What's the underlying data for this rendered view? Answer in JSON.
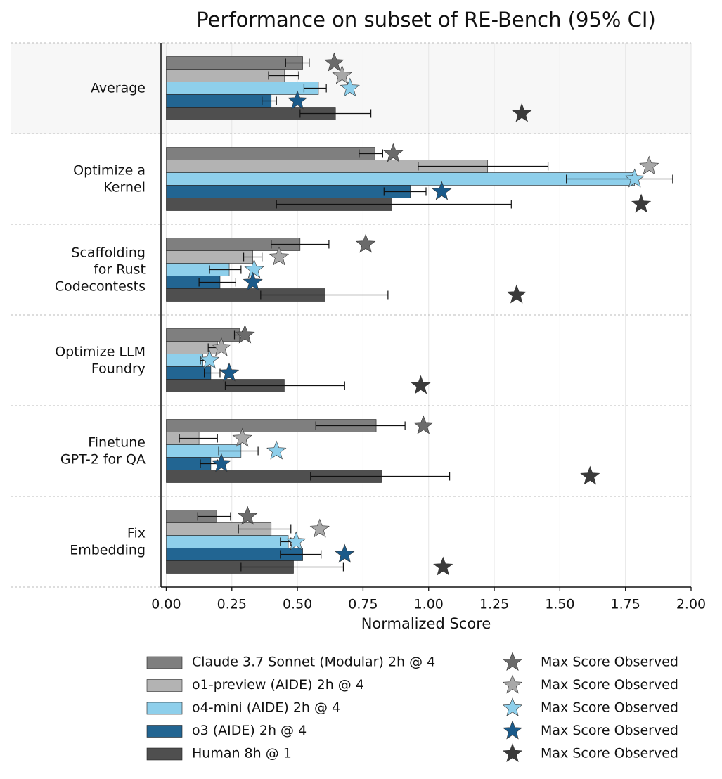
{
  "chart_data": {
    "type": "bar",
    "orientation": "horizontal",
    "title": "Performance on subset of RE-Bench (95% CI)",
    "xlabel": "Normalized Score",
    "categories": [
      "Average",
      "Optimize a\nKernel",
      "Scaffolding\nfor Rust\nCodecontests",
      "Optimize LLM\nFoundry",
      "Finetune\nGPT-2 for QA",
      "Fix\nEmbedding"
    ],
    "xlim": [
      -0.02,
      2.0
    ],
    "xticks": [
      {
        "value": 0,
        "label": "0.00"
      },
      0.25,
      {
        "value": 0.5,
        "label": "0.50"
      },
      0.75,
      {
        "value": 1,
        "label": "1.00"
      },
      1.25,
      {
        "value": 1.5,
        "label": "1.50"
      },
      1.75,
      {
        "value": 2,
        "label": "2.00"
      }
    ],
    "grid": true,
    "series": [
      {
        "name": "Claude 3.7 Sonnet (Modular) 2h @ 4",
        "color": "#7f7f7f",
        "star_color": "#6b6b6b",
        "max_label": "Max Score Observed",
        "values": [
          0.52,
          0.795,
          0.51,
          0.28,
          0.8,
          0.19
        ],
        "ci_low": [
          0.455,
          0.735,
          0.4,
          0.26,
          0.57,
          0.12
        ],
        "ci_high": [
          0.545,
          0.825,
          0.62,
          0.29,
          0.91,
          0.245
        ],
        "max_scores": [
          0.64,
          0.865,
          0.76,
          0.3,
          0.98,
          0.31
        ]
      },
      {
        "name": "o1-preview (AIDE) 2h @ 4",
        "color": "#b3b3b3",
        "star_color": "#a8a8a8",
        "max_label": "Max Score Observed",
        "values": [
          0.45,
          1.225,
          0.33,
          0.195,
          0.125,
          0.4
        ],
        "ci_low": [
          0.39,
          0.96,
          0.295,
          0.16,
          0.05,
          0.275
        ],
        "ci_high": [
          0.505,
          1.455,
          0.365,
          0.215,
          0.195,
          0.475
        ],
        "max_scores": [
          0.67,
          1.84,
          0.43,
          0.21,
          0.29,
          0.585
        ]
      },
      {
        "name": "o4-mini (AIDE) 2h @ 4",
        "color": "#8ecfeb",
        "star_color": "#8ecfeb",
        "max_label": "Max Score Observed",
        "values": [
          0.58,
          1.785,
          0.24,
          0.14,
          0.285,
          0.465
        ],
        "ci_low": [
          0.525,
          1.525,
          0.165,
          0.13,
          0.2,
          0.435
        ],
        "ci_high": [
          0.61,
          1.93,
          0.285,
          0.16,
          0.35,
          0.475
        ],
        "max_scores": [
          0.7,
          1.785,
          0.335,
          0.165,
          0.42,
          0.495
        ]
      },
      {
        "name": "o3 (AIDE) 2h @ 4",
        "color": "#226592",
        "star_color": "#1a5a8a",
        "max_label": "Max Score Observed",
        "values": [
          0.4,
          0.93,
          0.205,
          0.17,
          0.17,
          0.52
        ],
        "ci_low": [
          0.365,
          0.83,
          0.125,
          0.145,
          0.13,
          0.435
        ],
        "ci_high": [
          0.42,
          0.99,
          0.265,
          0.205,
          0.195,
          0.59
        ],
        "max_scores": [
          0.5,
          1.05,
          0.33,
          0.24,
          0.21,
          0.68
        ]
      },
      {
        "name": "Human 8h @ 1",
        "color": "#4f4f4f",
        "star_color": "#3a3a3a",
        "max_label": "Max Score Observed",
        "values": [
          0.645,
          0.86,
          0.605,
          0.45,
          0.82,
          0.485
        ],
        "ci_low": [
          0.51,
          0.42,
          0.36,
          0.225,
          0.55,
          0.285
        ],
        "ci_high": [
          0.78,
          1.315,
          0.845,
          0.68,
          1.08,
          0.675
        ],
        "max_scores": [
          1.355,
          1.81,
          1.335,
          0.97,
          1.615,
          1.055
        ]
      }
    ]
  }
}
